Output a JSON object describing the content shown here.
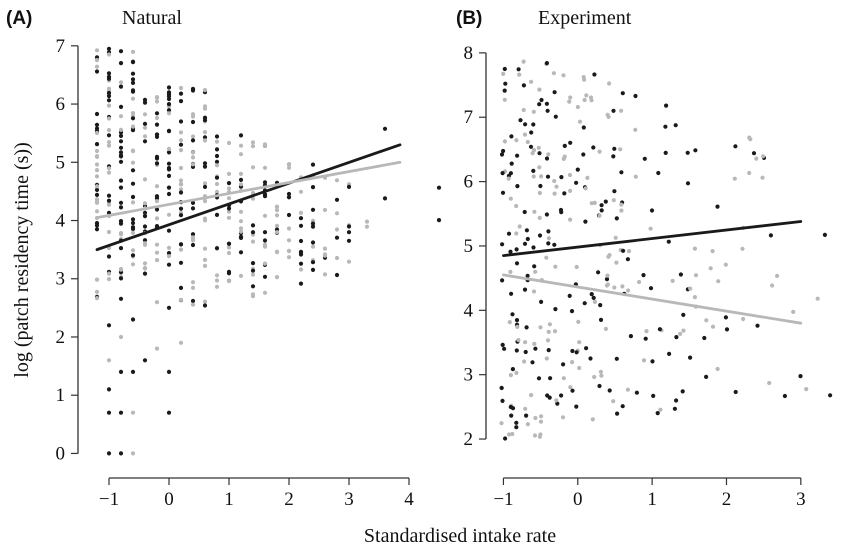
{
  "figure": {
    "xlabel": "Standardised intake rate",
    "ylabel": "log (patch residency time (s))"
  },
  "chart_data": [
    {
      "type": "scatter",
      "panel": "(A)",
      "title": "Natural",
      "xlabel": "Standardised intake rate",
      "ylabel": "log (patch residency time (s))",
      "xlim": [
        -1.35,
        4.35
      ],
      "ylim": [
        -0.25,
        7.1
      ],
      "xticks": [
        -1,
        0,
        1,
        2,
        3,
        4
      ],
      "yticks": [
        0,
        1,
        2,
        3,
        4,
        5,
        6,
        7
      ],
      "colors": {
        "black_group": "#1a1a1a",
        "grey_group": "#b8b8b8"
      },
      "point_columns_x": [
        -1.2,
        -1.0,
        -0.8,
        -0.6,
        -0.4,
        -0.2,
        0.0,
        0.2,
        0.4,
        0.6,
        0.8,
        1.0,
        1.2,
        1.4,
        1.6,
        1.8,
        2.0,
        2.2,
        2.4,
        2.6,
        2.8,
        3.0,
        3.3,
        3.6,
        4.5
      ],
      "point_range_note": "points concentrated between y=2.5 and y=6.5; sparse lower points down to 0 near x=-1",
      "series": [
        {
          "name": "",
          "color": "#1a1a1a",
          "fit_line": {
            "x": [
              -1.2,
              3.85
            ],
            "y": [
              3.5,
              5.3
            ]
          }
        },
        {
          "name": "",
          "color": "#b8b8b8",
          "fit_line": {
            "x": [
              -1.2,
              3.85
            ],
            "y": [
              4.05,
              5.0
            ]
          }
        }
      ]
    },
    {
      "type": "scatter",
      "panel": "(B)",
      "title": "Experiment",
      "xlabel": "Standardised intake rate",
      "ylabel": "",
      "xlim": [
        -1.1,
        3.5
      ],
      "ylim": [
        1.55,
        8.2
      ],
      "xticks": [
        -1,
        0,
        1,
        2,
        3
      ],
      "yticks": [
        2,
        3,
        4,
        5,
        6,
        7,
        8
      ],
      "colors": {
        "black_group": "#1a1a1a",
        "grey_group": "#b8b8b8"
      },
      "point_range_note": "dense points for x between -1 and 0.5, sparser to x=3.4",
      "series": [
        {
          "name": "",
          "color": "#1a1a1a",
          "fit_line": {
            "x": [
              -1.0,
              3.0
            ],
            "y": [
              4.85,
              5.38
            ]
          }
        },
        {
          "name": "",
          "color": "#b8b8b8",
          "fit_line": {
            "x": [
              -1.0,
              3.0
            ],
            "y": [
              4.55,
              3.8
            ]
          }
        }
      ]
    }
  ]
}
